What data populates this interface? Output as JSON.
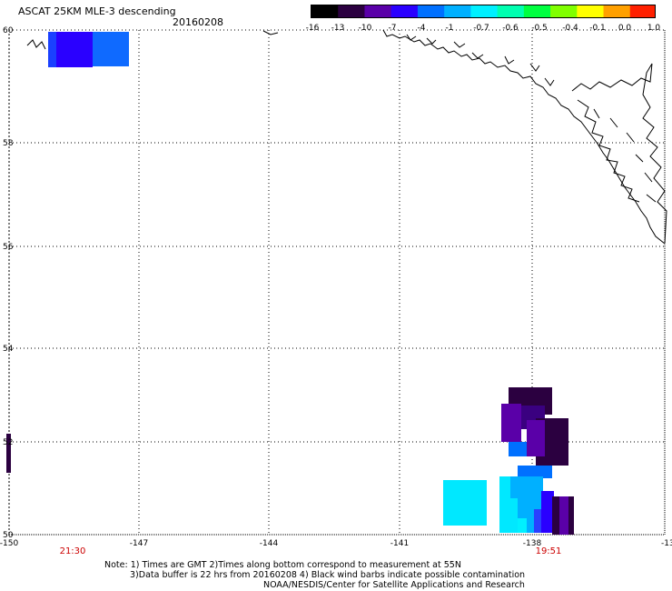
{
  "title": "ASCAT 25KM MLE-3 descending",
  "date": "20160208",
  "colorbar": {
    "ticks": [
      "-16",
      "-13",
      "-10",
      "-7",
      "-4",
      "-1",
      "-0.7",
      "-0.6",
      "-0.5",
      "-0.4",
      "-0.1",
      "0.0",
      "1.0"
    ],
    "colors": [
      "#000000",
      "#2b0040",
      "#5a00a8",
      "#2a00ff",
      "#0070ff",
      "#00b0ff",
      "#00f0ff",
      "#00ffb0",
      "#00ff40",
      "#80ff00",
      "#ffff00",
      "#ffa000",
      "#ff2000"
    ]
  },
  "map": {
    "lon_ticks": [
      "-150",
      "-147",
      "-144",
      "-141",
      "-138",
      "-13"
    ],
    "lat_ticks": [
      "60",
      "58",
      "56",
      "54",
      "52",
      "50"
    ],
    "times": [
      "21:30",
      "19:51"
    ]
  },
  "notes": [
    "Note: 1) Times are GMT 2)Times along bottom correspond to measurement at 55N",
    "3)Data buffer is 22 hrs from 20160208 4) Black wind barbs indicate possible contamination",
    "NOAA/NESDIS/Center for Satellite Applications and Research"
  ]
}
